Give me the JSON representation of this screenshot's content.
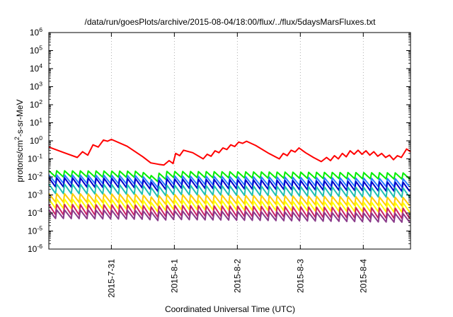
{
  "chart_data": {
    "type": "line",
    "title": "/data/run/goesPlots/archive/2015-08-04/18:00/flux/../flux/5daysMarsFluxes.txt",
    "xlabel": "Coordinated Universal Time (UTC)",
    "ylabel": {
      "base": "protons/cm",
      "exp": "2",
      "rest": "-s-sr-MeV"
    },
    "yscale": "log",
    "ylim": [
      1e-06,
      1000000.0
    ],
    "y_ticks": [
      {
        "value": 1e-06,
        "base": "10",
        "exp": "-6"
      },
      {
        "value": 1e-05,
        "base": "10",
        "exp": "-5"
      },
      {
        "value": 0.0001,
        "base": "10",
        "exp": "-4"
      },
      {
        "value": 0.001,
        "base": "10",
        "exp": "-3"
      },
      {
        "value": 0.01,
        "base": "10",
        "exp": "-2"
      },
      {
        "value": 0.1,
        "base": "10",
        "exp": "-1"
      },
      {
        "value": 1.0,
        "base": "10",
        "exp": "0"
      },
      {
        "value": 10.0,
        "base": "10",
        "exp": "1"
      },
      {
        "value": 100.0,
        "base": "10",
        "exp": "2"
      },
      {
        "value": 1000.0,
        "base": "10",
        "exp": "3"
      },
      {
        "value": 10000.0,
        "base": "10",
        "exp": "4"
      },
      {
        "value": 100000.0,
        "base": "10",
        "exp": "5"
      },
      {
        "value": 1000000.0,
        "base": "10",
        "exp": "6"
      }
    ],
    "xlim": [
      "2015-07-30T00:10",
      "2015-08-04T18:00"
    ],
    "x_ticks": [
      {
        "value": "2015-07-31T00:00",
        "label": "2015-7-31"
      },
      {
        "value": "2015-08-01T00:00",
        "label": "2015-8-1"
      },
      {
        "value": "2015-08-02T00:00",
        "label": "2015-8-2"
      },
      {
        "value": "2015-08-03T00:00",
        "label": "2015-8-3"
      },
      {
        "value": "2015-08-04T00:00",
        "label": "2015-8-4"
      }
    ],
    "grid": {
      "x": true,
      "y": false,
      "style": "dotted"
    },
    "legend": "none",
    "series": [
      {
        "color": "#ff0000",
        "points": [
          [
            "2015-07-30T00:10",
            0.45
          ],
          [
            "2015-07-30T06:00",
            0.22
          ],
          [
            "2015-07-30T11:00",
            0.12
          ],
          [
            "2015-07-30T13:00",
            0.25
          ],
          [
            "2015-07-30T15:00",
            0.16
          ],
          [
            "2015-07-30T17:00",
            0.6
          ],
          [
            "2015-07-30T19:00",
            0.45
          ],
          [
            "2015-07-30T21:00",
            1.1
          ],
          [
            "2015-07-30T22:30",
            0.95
          ],
          [
            "2015-07-31T00:00",
            1.2
          ],
          [
            "2015-07-31T06:00",
            0.5
          ],
          [
            "2015-07-31T12:00",
            0.13
          ],
          [
            "2015-07-31T15:00",
            0.06
          ],
          [
            "2015-07-31T18:00",
            0.05
          ],
          [
            "2015-07-31T20:00",
            0.045
          ],
          [
            "2015-07-31T22:00",
            0.08
          ],
          [
            "2015-07-31T23:30",
            0.055
          ],
          [
            "2015-08-01T00:30",
            0.2
          ],
          [
            "2015-08-01T02:00",
            0.15
          ],
          [
            "2015-08-01T03:30",
            0.3
          ],
          [
            "2015-08-01T07:00",
            0.22
          ],
          [
            "2015-08-01T11:00",
            0.1
          ],
          [
            "2015-08-01T12:30",
            0.18
          ],
          [
            "2015-08-01T14:00",
            0.14
          ],
          [
            "2015-08-01T15:30",
            0.28
          ],
          [
            "2015-08-01T17:00",
            0.22
          ],
          [
            "2015-08-01T18:30",
            0.4
          ],
          [
            "2015-08-01T20:00",
            0.33
          ],
          [
            "2015-08-01T21:30",
            0.6
          ],
          [
            "2015-08-01T23:00",
            0.48
          ],
          [
            "2015-08-02T00:30",
            0.85
          ],
          [
            "2015-08-02T02:00",
            0.72
          ],
          [
            "2015-08-02T03:30",
            0.95
          ],
          [
            "2015-08-02T07:00",
            0.55
          ],
          [
            "2015-08-02T12:00",
            0.2
          ],
          [
            "2015-08-02T16:00",
            0.1
          ],
          [
            "2015-08-02T17:30",
            0.2
          ],
          [
            "2015-08-02T19:00",
            0.15
          ],
          [
            "2015-08-02T20:30",
            0.3
          ],
          [
            "2015-08-02T22:00",
            0.24
          ],
          [
            "2015-08-02T23:30",
            0.4
          ],
          [
            "2015-08-03T02:00",
            0.22
          ],
          [
            "2015-08-03T05:00",
            0.12
          ],
          [
            "2015-08-03T08:00",
            0.07
          ],
          [
            "2015-08-03T10:00",
            0.12
          ],
          [
            "2015-08-03T11:30",
            0.08
          ],
          [
            "2015-08-03T13:00",
            0.15
          ],
          [
            "2015-08-03T14:30",
            0.1
          ],
          [
            "2015-08-03T16:00",
            0.2
          ],
          [
            "2015-08-03T17:30",
            0.13
          ],
          [
            "2015-08-03T19:00",
            0.28
          ],
          [
            "2015-08-03T20:30",
            0.18
          ],
          [
            "2015-08-03T22:00",
            0.3
          ],
          [
            "2015-08-03T23:30",
            0.18
          ],
          [
            "2015-08-04T01:00",
            0.28
          ],
          [
            "2015-08-04T02:30",
            0.16
          ],
          [
            "2015-08-04T04:00",
            0.25
          ],
          [
            "2015-08-04T05:30",
            0.14
          ],
          [
            "2015-08-04T07:00",
            0.2
          ],
          [
            "2015-08-04T08:30",
            0.12
          ],
          [
            "2015-08-04T10:00",
            0.16
          ],
          [
            "2015-08-04T11:30",
            0.09
          ],
          [
            "2015-08-04T13:00",
            0.15
          ],
          [
            "2015-08-04T14:30",
            0.12
          ],
          [
            "2015-08-04T16:30",
            0.35
          ],
          [
            "2015-08-04T18:00",
            0.25
          ]
        ]
      },
      {
        "color": "#00ee00",
        "pattern": {
          "peak": 0.022,
          "trough": 0.01,
          "dip_depth": 0.45,
          "end_level": 0.75
        }
      },
      {
        "color": "#2a7fff",
        "pattern": {
          "peak": 0.013,
          "trough": 0.0045,
          "dip_depth": 0.4,
          "end_level": 0.6
        }
      },
      {
        "color": "#0000cc",
        "pattern": {
          "peak": 0.009,
          "trough": 0.0028,
          "dip_depth": 0.38,
          "end_level": 0.55
        }
      },
      {
        "color": "#20c0b0",
        "pattern": {
          "peak": 0.004,
          "trough": 0.0012,
          "dip_depth": 0.3,
          "end_level": 0.6
        }
      },
      {
        "color": "#ffcc00",
        "pattern": {
          "peak": 0.0012,
          "trough": 0.0004,
          "dip_depth": 0.3,
          "end_level": 0.6
        }
      },
      {
        "color": "#ffff00",
        "pattern": {
          "peak": 0.0006,
          "trough": 0.00018,
          "dip_depth": 0.3,
          "end_level": 0.6
        }
      },
      {
        "color": "#cc2266",
        "pattern": {
          "peak": 0.0003,
          "trough": 8e-05,
          "dip_depth": 0.2,
          "end_level": 0.6
        }
      },
      {
        "color": "#8a3a8a",
        "pattern": {
          "peak": 0.00015,
          "trough": 5e-05,
          "dip_depth": 0.15,
          "end_level": 0.6
        }
      }
    ]
  }
}
